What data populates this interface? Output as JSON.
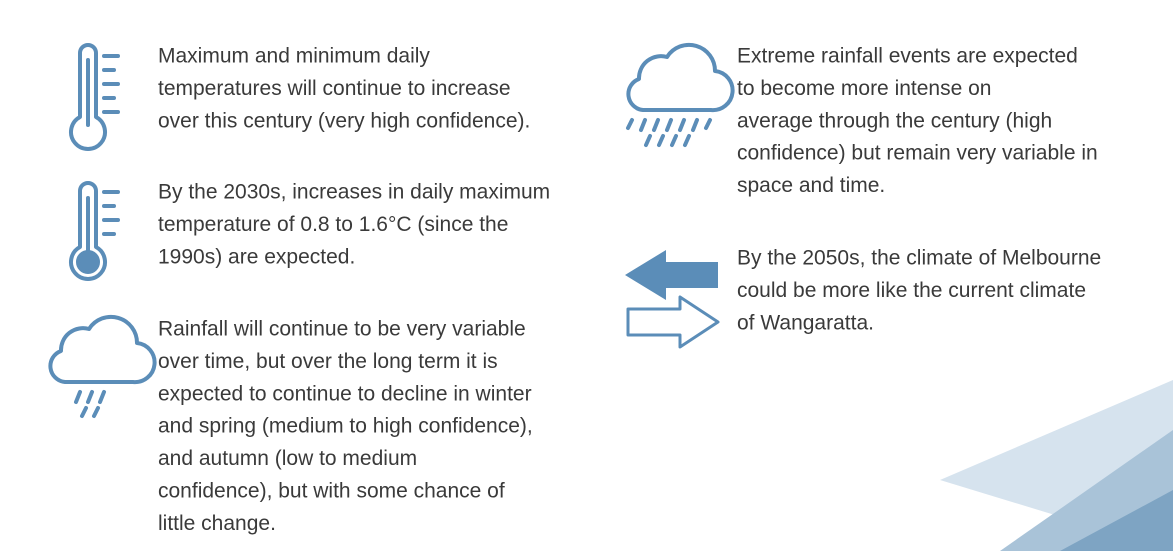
{
  "items_left": [
    {
      "lines": [
        "Maximum and minimum daily",
        "temperatures will continue to increase",
        "over this century (very high confidence)."
      ]
    },
    {
      "lines": [
        "By the 2030s, increases in daily maximum",
        "temperature of 0.8 to 1.6°C (since the",
        "1990s) are expected."
      ]
    },
    {
      "lines": [
        "Rainfall will continue to be very variable",
        "over time, but over the long term it is",
        "expected to continue to decline in winter",
        "and spring (medium to high confidence),",
        "and autumn (low to medium",
        "confidence), but with some chance of",
        "little change."
      ]
    }
  ],
  "items_right": [
    {
      "lines": [
        "Extreme rainfall events are expected",
        "to become more intense on",
        "average through the century (high",
        "confidence) but remain very variable in",
        "space and time."
      ]
    },
    {
      "lines": [
        "By the 2050s, the climate of Melbourne",
        "could be more like the current climate",
        "of Wangaratta."
      ]
    }
  ]
}
